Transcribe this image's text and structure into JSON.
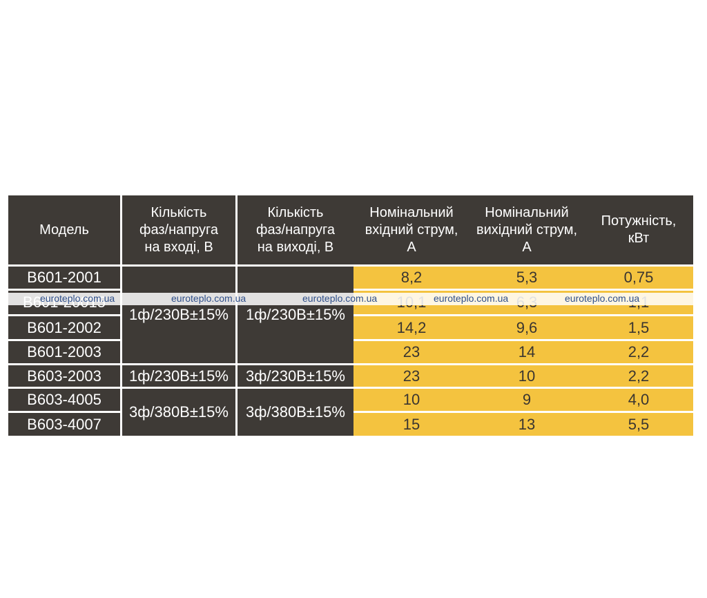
{
  "table": {
    "headers": [
      "Модель",
      "Кількість\nфаз/напруга\nна вході, В",
      "Кількість\nфаз/напруга\nна виході, В",
      "Номінальний\nвхідний струм,\nА",
      "Номінальний\nвихідний струм,\nА",
      "Потужність,\nкВт"
    ],
    "models": [
      "B601-2001",
      "B601-20015",
      "B601-2002",
      "B601-2003",
      "B603-2003",
      "B603-4005",
      "B603-4007"
    ],
    "input_groups": [
      "1ф/230В±15%",
      "1ф/230В±15%",
      "3ф/380В±15%"
    ],
    "output_groups": [
      "1ф/230В±15%",
      "3ф/230В±15%",
      "3ф/380В±15%"
    ],
    "input_current": [
      "8,2",
      "10,1",
      "14,2",
      "23",
      "23",
      "10",
      "15"
    ],
    "output_current": [
      "5,3",
      "6,3",
      "9,6",
      "14",
      "10",
      "9",
      "13"
    ],
    "power": [
      "0,75",
      "1,1",
      "1,5",
      "2,2",
      "2,2",
      "4,0",
      "5,5"
    ]
  },
  "watermark": {
    "text": [
      "euroteplo.com.ua",
      "euroteplo.com.ua",
      "euroteplo.com.ua",
      "euroteplo.com.ua",
      "euroteplo.com.ua"
    ]
  },
  "colors": {
    "dark": "#3e3a36",
    "accent": "#f4c33f"
  }
}
